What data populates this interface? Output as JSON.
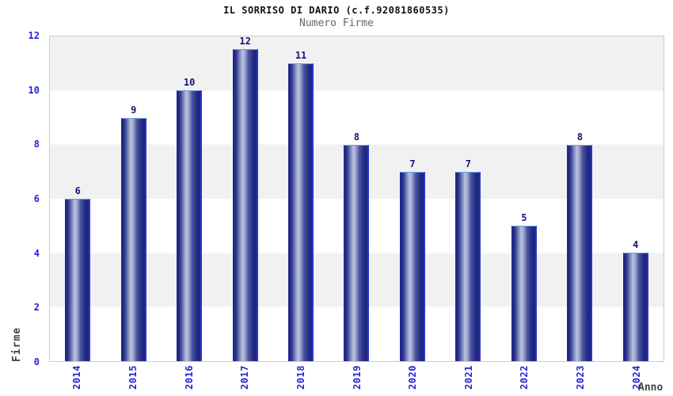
{
  "chart_data": {
    "type": "bar",
    "title": "IL SORRISO DI DARIO (c.f.92081860535)",
    "subtitle": "Numero Firme",
    "xlabel": "Anno",
    "ylabel": "Firme",
    "categories": [
      "2014",
      "2015",
      "2016",
      "2017",
      "2018",
      "2019",
      "2020",
      "2021",
      "2022",
      "2023",
      "2024"
    ],
    "values": [
      6,
      9,
      10,
      12,
      11,
      8,
      7,
      7,
      5,
      8,
      4
    ],
    "ylim": [
      0,
      12
    ],
    "yticks": [
      0,
      2,
      4,
      6,
      8,
      10,
      12
    ],
    "grid": "alternating-horizontal-bands",
    "legend": "none",
    "colors": {
      "bar_dark": "#1c2280",
      "bar_light": "#bcc3e0",
      "bar_edge_right": "#2a36c8",
      "bar_edge_top": "#6f9ad8",
      "tick_label_blue": "#2424d9",
      "value_label_navy": "#14147d",
      "band_gray": "#f1f1f1",
      "plot_border": "#cccccc",
      "title_color": "#111111",
      "subtitle_color": "#666666",
      "axis_title_color": "#444444"
    }
  }
}
